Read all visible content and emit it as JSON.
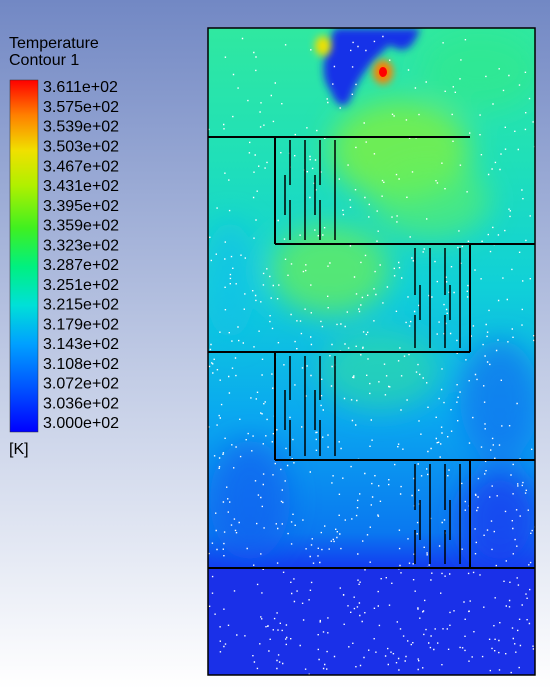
{
  "legend": {
    "title": "Temperature",
    "subtitle": "Contour 1",
    "labels": [
      "3.611e+02",
      "3.575e+02",
      "3.539e+02",
      "3.503e+02",
      "3.467e+02",
      "3.431e+02",
      "3.395e+02",
      "3.359e+02",
      "3.323e+02",
      "3.287e+02",
      "3.251e+02",
      "3.215e+02",
      "3.179e+02",
      "3.143e+02",
      "3.108e+02",
      "3.072e+02",
      "3.036e+02",
      "3.000e+02"
    ],
    "unit": "[K]"
  }
}
